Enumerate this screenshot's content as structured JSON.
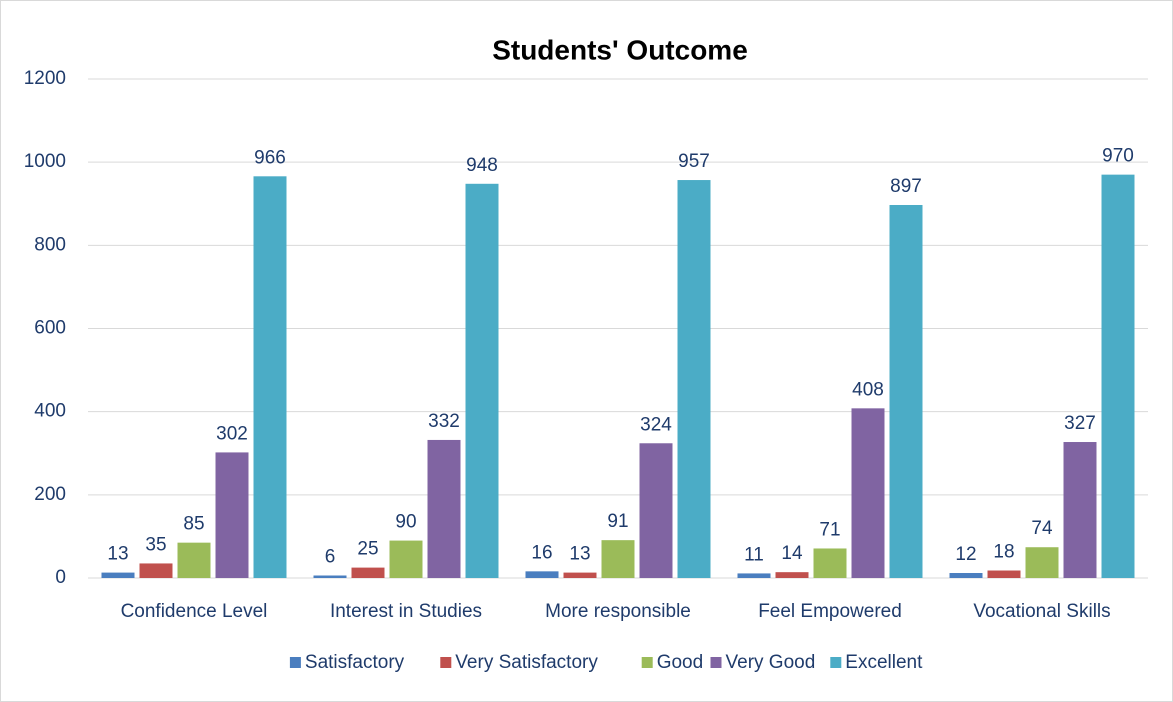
{
  "chart_data": {
    "type": "bar",
    "title": "Students' Outcome",
    "categories": [
      "Confidence Level",
      "Interest in Studies",
      "More responsible",
      "Feel Empowered",
      "Vocational Skills"
    ],
    "series": [
      {
        "name": "Satisfactory",
        "color": "#4a7ebf",
        "values": [
          13,
          6,
          16,
          11,
          12
        ]
      },
      {
        "name": "Very Satisfactory",
        "color": "#c0504d",
        "values": [
          35,
          25,
          13,
          14,
          18
        ]
      },
      {
        "name": "Good",
        "color": "#9bbb59",
        "values": [
          85,
          90,
          91,
          71,
          74
        ]
      },
      {
        "name": "Very Good",
        "color": "#8064a2",
        "values": [
          302,
          332,
          324,
          408,
          327
        ]
      },
      {
        "name": "Excellent",
        "color": "#4bacc6",
        "values": [
          966,
          948,
          957,
          897,
          970
        ]
      }
    ],
    "ylim": [
      0,
      1200
    ],
    "yticks": [
      0,
      200,
      400,
      600,
      800,
      1000,
      1200
    ],
    "grid": true,
    "legend": "bottom"
  }
}
